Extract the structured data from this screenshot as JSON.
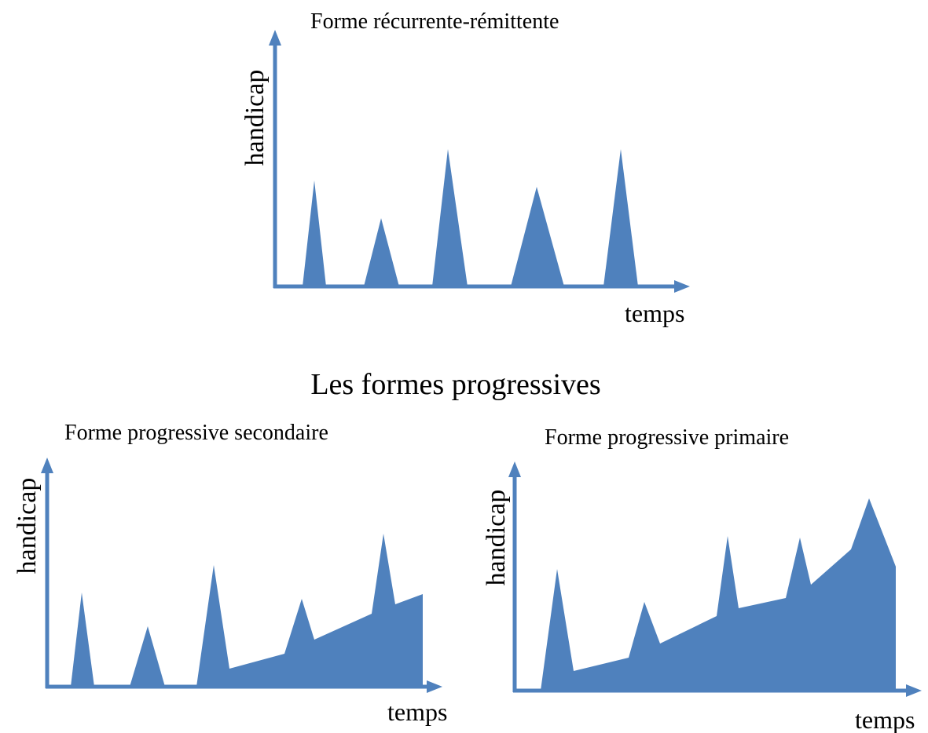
{
  "section_title": "Les formes progressives",
  "panels": [
    {
      "title": "Forme récurrente-rémittente",
      "y_label": "handicap",
      "x_label": "temps"
    },
    {
      "title": "Forme progressive secondaire",
      "y_label": "handicap",
      "x_label": "temps"
    },
    {
      "title": "Forme progressive primaire",
      "y_label": "handicap",
      "x_label": "temps"
    }
  ]
}
